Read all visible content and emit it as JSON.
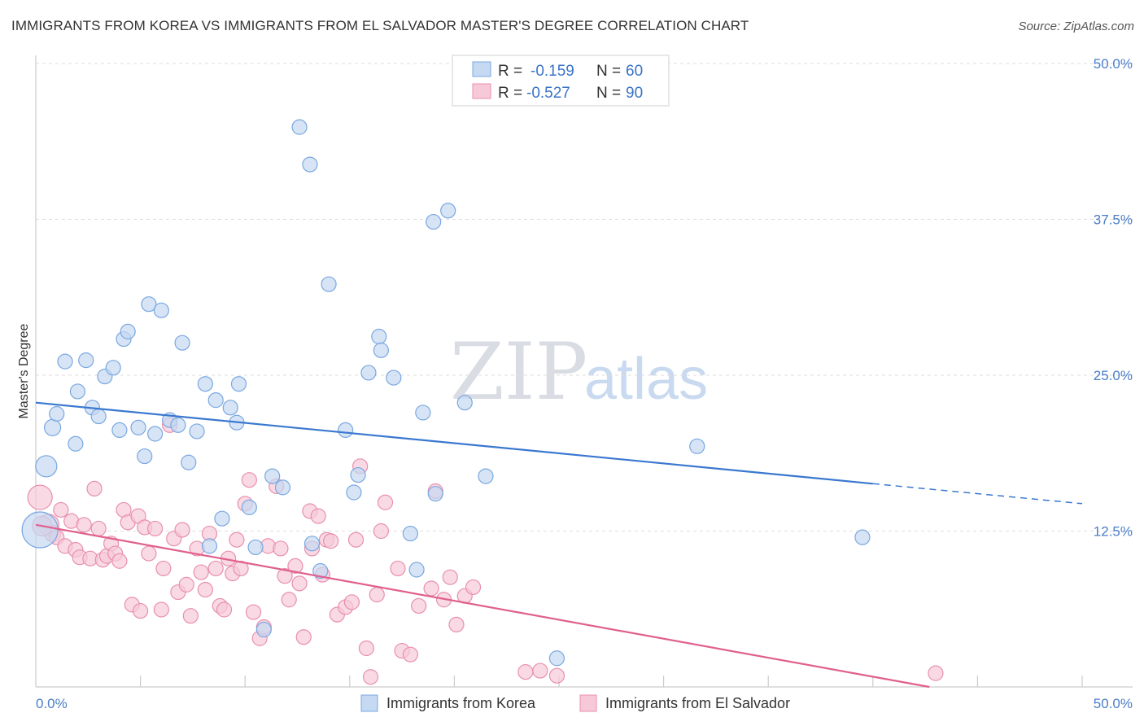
{
  "chart_data": {
    "type": "scatter",
    "title": "IMMIGRANTS FROM KOREA VS IMMIGRANTS FROM EL SALVADOR MASTER'S DEGREE CORRELATION CHART",
    "source": "Source: ZipAtlas.com",
    "xlabel": "",
    "ylabel": "Master's Degree",
    "xlim": [
      0,
      50
    ],
    "ylim": [
      0,
      50
    ],
    "x_tick_labels": [
      "0.0%",
      "50.0%"
    ],
    "y_tick_labels": [
      "12.5%",
      "25.0%",
      "37.5%",
      "50.0%"
    ],
    "y_ticks": [
      12.5,
      25.0,
      37.5,
      50.0
    ],
    "grid": true,
    "watermark": {
      "zip": "ZIP",
      "atlas": "atlas"
    },
    "legend": {
      "position": "top-center",
      "r_label": "R =",
      "n_label": "N =",
      "entries": [
        {
          "r": "-0.159",
          "n": "60"
        },
        {
          "r": "-0.527",
          "n": "90"
        }
      ]
    },
    "series": [
      {
        "name": "Immigrants from Korea",
        "color": "#7aa8e0",
        "fill": "#c5d9f2",
        "line_color": "#3a78d0",
        "trend": {
          "x0": 0,
          "y0": 22.8,
          "x1": 40,
          "y1": 16.3,
          "x_dash_end": 50,
          "y_dash_end": 14.7
        },
        "points": [
          [
            0.2,
            12.6
          ],
          [
            0.5,
            17.7
          ],
          [
            0.8,
            20.8
          ],
          [
            1.0,
            21.9
          ],
          [
            1.4,
            26.1
          ],
          [
            1.9,
            19.5
          ],
          [
            2.0,
            23.7
          ],
          [
            2.4,
            26.2
          ],
          [
            2.7,
            22.4
          ],
          [
            3.0,
            21.7
          ],
          [
            3.3,
            24.9
          ],
          [
            3.7,
            25.6
          ],
          [
            4.0,
            20.6
          ],
          [
            4.2,
            27.9
          ],
          [
            4.4,
            28.5
          ],
          [
            4.9,
            20.8
          ],
          [
            5.2,
            18.5
          ],
          [
            5.4,
            30.7
          ],
          [
            5.7,
            20.3
          ],
          [
            6.0,
            30.2
          ],
          [
            6.4,
            21.4
          ],
          [
            6.8,
            21.0
          ],
          [
            7.0,
            27.6
          ],
          [
            7.3,
            18.0
          ],
          [
            7.7,
            20.5
          ],
          [
            8.1,
            24.3
          ],
          [
            8.3,
            11.3
          ],
          [
            8.6,
            23.0
          ],
          [
            8.9,
            13.5
          ],
          [
            9.3,
            22.4
          ],
          [
            9.6,
            21.2
          ],
          [
            9.7,
            24.3
          ],
          [
            10.2,
            14.4
          ],
          [
            10.5,
            11.2
          ],
          [
            10.9,
            4.6
          ],
          [
            11.3,
            16.9
          ],
          [
            11.8,
            16.0
          ],
          [
            12.6,
            44.9
          ],
          [
            13.1,
            41.9
          ],
          [
            13.2,
            11.5
          ],
          [
            13.6,
            9.3
          ],
          [
            14.0,
            32.3
          ],
          [
            14.8,
            20.6
          ],
          [
            15.2,
            15.6
          ],
          [
            15.4,
            17.0
          ],
          [
            15.9,
            25.2
          ],
          [
            16.4,
            28.1
          ],
          [
            16.5,
            27.0
          ],
          [
            17.1,
            24.8
          ],
          [
            17.9,
            12.3
          ],
          [
            18.2,
            9.4
          ],
          [
            18.5,
            22.0
          ],
          [
            19.0,
            37.3
          ],
          [
            19.1,
            15.5
          ],
          [
            19.7,
            38.2
          ],
          [
            20.5,
            22.8
          ],
          [
            21.5,
            16.9
          ],
          [
            24.9,
            2.3
          ],
          [
            31.6,
            19.3
          ],
          [
            39.5,
            12.0
          ]
        ],
        "sizes": [
          22,
          13,
          10,
          9,
          9,
          9,
          9,
          9,
          9,
          9,
          9,
          9,
          9,
          9,
          9,
          9,
          9,
          9,
          9,
          9,
          9,
          9,
          9,
          9,
          9,
          9,
          9,
          9,
          9,
          9,
          9,
          9,
          9,
          9,
          9,
          9,
          9,
          9,
          9,
          9,
          9,
          9,
          9,
          9,
          9,
          9,
          9,
          9,
          9,
          9,
          9,
          9,
          9,
          9,
          9,
          9,
          9,
          9,
          9,
          9
        ]
      },
      {
        "name": "Immigrants from El Salvador",
        "color": "#e890ad",
        "fill": "#f7c9d8",
        "line_color": "#e0608e",
        "trend": {
          "x0": 0,
          "y0": 13.0,
          "x1": 42.7,
          "y1": 0.0
        },
        "points": [
          [
            0.2,
            15.2
          ],
          [
            0.6,
            13.0
          ],
          [
            0.8,
            12.3
          ],
          [
            1.0,
            12.0
          ],
          [
            1.2,
            14.2
          ],
          [
            1.4,
            11.3
          ],
          [
            1.7,
            13.3
          ],
          [
            1.9,
            11.0
          ],
          [
            2.1,
            10.4
          ],
          [
            2.3,
            13.0
          ],
          [
            2.6,
            10.3
          ],
          [
            2.8,
            15.9
          ],
          [
            3.0,
            12.7
          ],
          [
            3.2,
            10.2
          ],
          [
            3.4,
            10.5
          ],
          [
            3.6,
            11.5
          ],
          [
            3.8,
            10.7
          ],
          [
            4.0,
            10.1
          ],
          [
            4.2,
            14.2
          ],
          [
            4.4,
            13.2
          ],
          [
            4.6,
            6.6
          ],
          [
            4.9,
            13.7
          ],
          [
            5.0,
            6.1
          ],
          [
            5.2,
            12.8
          ],
          [
            5.4,
            10.7
          ],
          [
            5.7,
            12.7
          ],
          [
            6.0,
            6.2
          ],
          [
            6.1,
            9.5
          ],
          [
            6.4,
            21.0
          ],
          [
            6.6,
            11.9
          ],
          [
            6.8,
            7.6
          ],
          [
            7.0,
            12.6
          ],
          [
            7.2,
            8.2
          ],
          [
            7.4,
            5.7
          ],
          [
            7.7,
            11.1
          ],
          [
            7.9,
            9.2
          ],
          [
            8.1,
            7.8
          ],
          [
            8.3,
            12.3
          ],
          [
            8.6,
            9.5
          ],
          [
            8.8,
            6.5
          ],
          [
            9.0,
            6.2
          ],
          [
            9.2,
            10.3
          ],
          [
            9.4,
            9.1
          ],
          [
            9.6,
            11.8
          ],
          [
            9.8,
            9.5
          ],
          [
            10.0,
            14.7
          ],
          [
            10.2,
            16.6
          ],
          [
            10.4,
            6.0
          ],
          [
            10.7,
            3.9
          ],
          [
            10.9,
            4.8
          ],
          [
            11.1,
            11.3
          ],
          [
            11.5,
            16.1
          ],
          [
            11.7,
            11.1
          ],
          [
            11.9,
            8.9
          ],
          [
            12.1,
            7.0
          ],
          [
            12.4,
            9.7
          ],
          [
            12.6,
            8.3
          ],
          [
            12.8,
            4.0
          ],
          [
            13.1,
            14.1
          ],
          [
            13.2,
            11.1
          ],
          [
            13.5,
            13.7
          ],
          [
            13.7,
            9.0
          ],
          [
            13.9,
            11.8
          ],
          [
            14.1,
            11.7
          ],
          [
            14.4,
            5.8
          ],
          [
            14.8,
            6.4
          ],
          [
            15.1,
            6.8
          ],
          [
            15.3,
            11.8
          ],
          [
            15.5,
            17.7
          ],
          [
            15.8,
            3.1
          ],
          [
            16.0,
            0.8
          ],
          [
            16.3,
            7.4
          ],
          [
            16.5,
            12.5
          ],
          [
            16.7,
            14.8
          ],
          [
            17.3,
            9.5
          ],
          [
            17.5,
            2.9
          ],
          [
            17.9,
            2.6
          ],
          [
            18.3,
            6.5
          ],
          [
            18.9,
            7.9
          ],
          [
            19.1,
            15.7
          ],
          [
            19.5,
            7.0
          ],
          [
            19.8,
            8.8
          ],
          [
            20.1,
            5.0
          ],
          [
            20.5,
            7.3
          ],
          [
            20.9,
            8.0
          ],
          [
            23.4,
            1.2
          ],
          [
            24.1,
            1.3
          ],
          [
            24.9,
            0.9
          ],
          [
            43.0,
            1.1
          ],
          [
            0.3,
            12.9
          ]
        ],
        "sizes": [
          15,
          13,
          10,
          9,
          9,
          9,
          9,
          9,
          9,
          9,
          9,
          9,
          9,
          9,
          9,
          9,
          9,
          9,
          9,
          9,
          9,
          9,
          9,
          9,
          9,
          9,
          9,
          9,
          9,
          9,
          9,
          9,
          9,
          9,
          9,
          9,
          9,
          9,
          9,
          9,
          9,
          9,
          9,
          9,
          9,
          9,
          9,
          9,
          9,
          9,
          9,
          9,
          9,
          9,
          9,
          9,
          9,
          9,
          9,
          9,
          9,
          9,
          9,
          9,
          9,
          9,
          9,
          9,
          9,
          9,
          9,
          9,
          9,
          9,
          9,
          9,
          9,
          9,
          9,
          9,
          9,
          9,
          9,
          9,
          9,
          9,
          9,
          9,
          9,
          12
        ]
      }
    ]
  }
}
